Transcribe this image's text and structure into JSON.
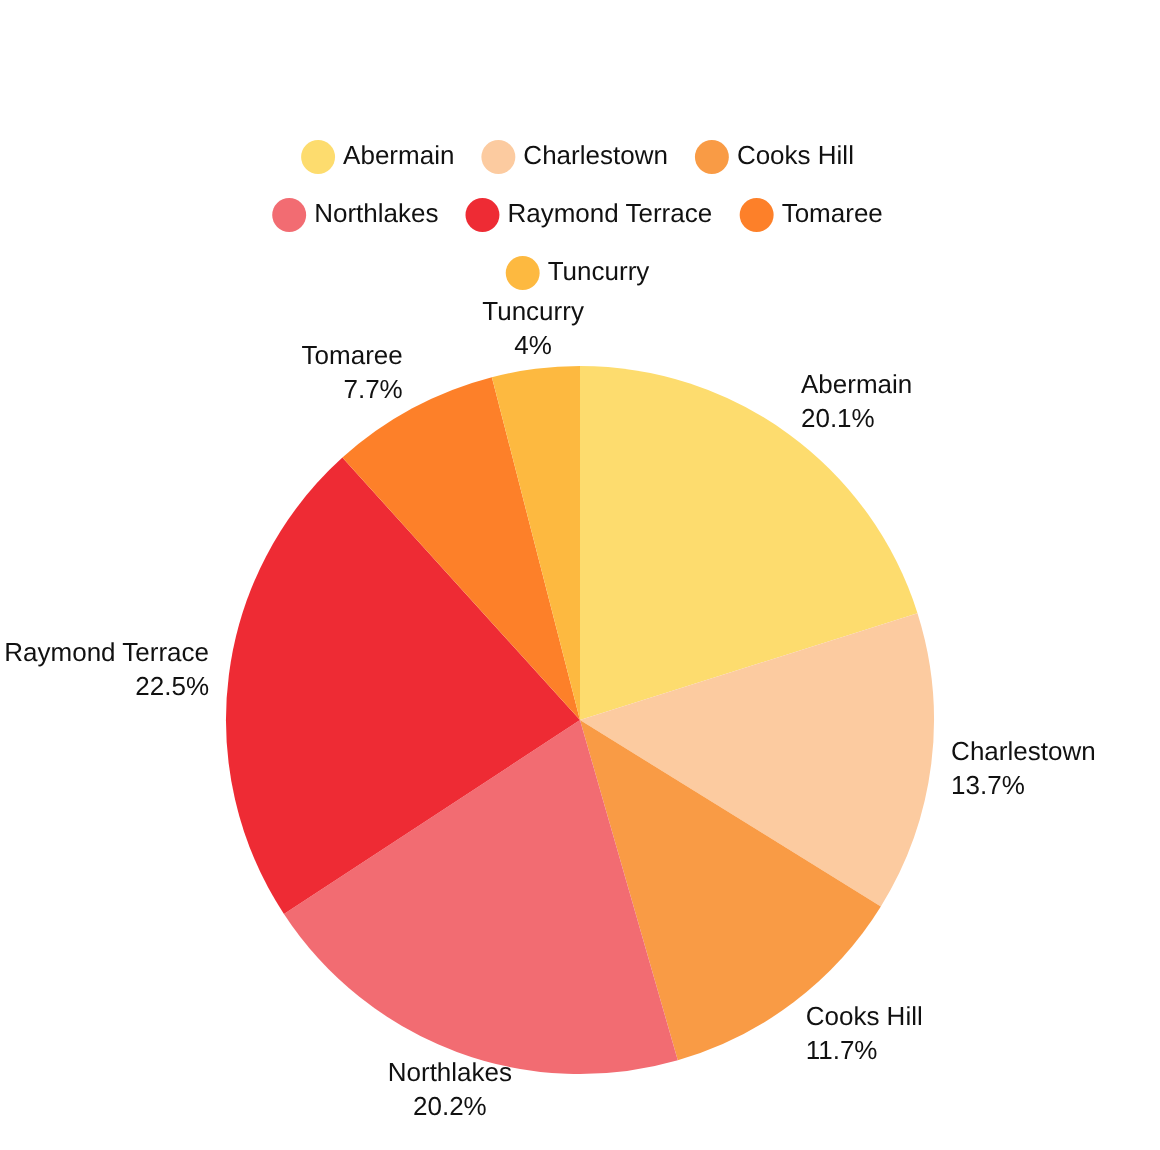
{
  "chart_data": {
    "type": "pie",
    "categories": [
      "Abermain",
      "Charlestown",
      "Cooks Hill",
      "Northlakes",
      "Raymond Terrace",
      "Tomaree",
      "Tuncurry"
    ],
    "values": [
      20.1,
      13.7,
      11.7,
      20.2,
      22.5,
      7.7,
      4
    ],
    "colors": [
      "#fddc6e",
      "#fccba0",
      "#f99b45",
      "#f26c72",
      "#ee2b34",
      "#fd8029",
      "#fdb940"
    ],
    "value_labels": [
      "20.1%",
      "13.7%",
      "11.7%",
      "20.2%",
      "22.5%",
      "7.7%",
      "4%"
    ],
    "legend": "top"
  }
}
